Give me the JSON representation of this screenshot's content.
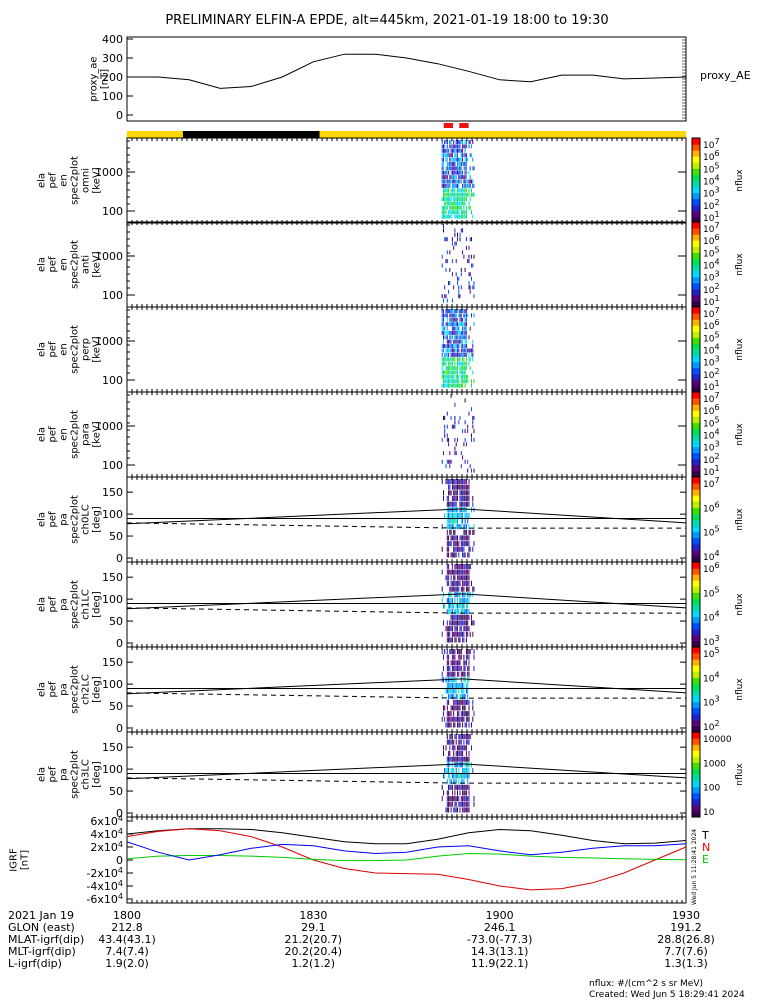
{
  "title": "PRELIMINARY ELFIN-A EPDE, alt=445km, 2021-01-19 18:00 to 19:30",
  "panels": [
    {
      "name": "ae",
      "ylab": [
        "proxy_ae",
        "[nT]"
      ],
      "yticks": [
        "400",
        "300",
        "200",
        "100",
        "0"
      ],
      "right_label": "proxy_AE"
    },
    {
      "name": "omni",
      "ylab": [
        "ela",
        "pef",
        "en",
        "spec2plot",
        "omni",
        "[keV]"
      ],
      "yticks": [
        "1000",
        "100"
      ],
      "cb_ticks": [
        "10^7",
        "10^6",
        "10^5",
        "10^4",
        "10^3",
        "10^2",
        "10^1"
      ],
      "cb_label": "nflux"
    },
    {
      "name": "anti",
      "ylab": [
        "ela",
        "pef",
        "en",
        "spec2plot",
        "anti",
        "[keV]"
      ],
      "yticks": [
        "1000",
        "100"
      ],
      "cb_ticks": [
        "10^7",
        "10^6",
        "10^5",
        "10^4",
        "10^3",
        "10^2",
        "10^1"
      ],
      "cb_label": "nflux"
    },
    {
      "name": "perp",
      "ylab": [
        "ela",
        "pef",
        "en",
        "spec2plot",
        "perp",
        "[keV]"
      ],
      "yticks": [
        "1000",
        "100"
      ],
      "cb_ticks": [
        "10^7",
        "10^6",
        "10^5",
        "10^4",
        "10^3",
        "10^2",
        "10^1"
      ],
      "cb_label": "nflux"
    },
    {
      "name": "para",
      "ylab": [
        "ela",
        "pef",
        "en",
        "spec2plot",
        "para",
        "[keV]"
      ],
      "yticks": [
        "1000",
        "100"
      ],
      "cb_ticks": [
        "10^7",
        "10^6",
        "10^5",
        "10^4",
        "10^3",
        "10^2",
        "10^1"
      ],
      "cb_label": "nflux"
    },
    {
      "name": "ch0",
      "ylab": [
        "ela",
        "pef",
        "pa",
        "spec2plot",
        "ch0LC",
        "[deg]"
      ],
      "yticks": [
        "150",
        "100",
        "50",
        "0"
      ],
      "cb_ticks": [
        "10^7",
        "10^6",
        "10^5",
        "10^4"
      ],
      "cb_label": "nflux"
    },
    {
      "name": "ch1",
      "ylab": [
        "ela",
        "pef",
        "pa",
        "spec2plot",
        "ch1LC",
        "[deg]"
      ],
      "yticks": [
        "150",
        "100",
        "50",
        "0"
      ],
      "cb_ticks": [
        "10^6",
        "10^5",
        "10^4",
        "10^3"
      ],
      "cb_label": "nflux"
    },
    {
      "name": "ch2",
      "ylab": [
        "ela",
        "pef",
        "pa",
        "spec2plot",
        "ch2LC",
        "[deg]"
      ],
      "yticks": [
        "150",
        "100",
        "50",
        "0"
      ],
      "cb_ticks": [
        "10^5",
        "10^4",
        "10^3",
        "10^2"
      ],
      "cb_label": "nflux"
    },
    {
      "name": "ch3",
      "ylab": [
        "ela",
        "pef",
        "pa",
        "spec2plot",
        "ch3LC",
        "[deg]"
      ],
      "yticks": [
        "150",
        "100",
        "50",
        "0"
      ],
      "cb_ticks": [
        "10000",
        "1000",
        "100",
        "10"
      ],
      "cb_label": "nflux"
    },
    {
      "name": "igrf",
      "ylab": [
        "IGRF",
        "[nT]"
      ],
      "yticks": [
        "6x10^4",
        "4x10^4",
        "2x10^4",
        "0",
        "-2x10^4",
        "-4x10^4",
        "-6x10^4"
      ],
      "legend": [
        "T",
        "N",
        "E"
      ],
      "legend_colors": [
        "#000000",
        "#ff0000",
        "#00ff00"
      ]
    }
  ],
  "xaxis": {
    "rows": [
      [
        "2021 Jan 19",
        "1800",
        "1830",
        "1900",
        "1930"
      ],
      [
        "GLON (east)",
        "212.8",
        "29.1",
        "246.1",
        "191.2"
      ],
      [
        "MLAT-igrf(dip)",
        "43.4(43.1)",
        "21.2(20.7)",
        "-73.0(-77.3)",
        "28.8(26.8)"
      ],
      [
        "MLT-igrf(dip)",
        "7.4(7.4)",
        "20.2(20.4)",
        "14.3(13.1)",
        "7.7(7.6)"
      ],
      [
        "L-igrf(dip)",
        "1.9(2.0)",
        "1.2(1.2)",
        "11.9(22.1)",
        "1.3(1.3)"
      ]
    ]
  },
  "footer": [
    "nflux: #/(cm^2 s sr MeV)",
    "Created: Wed Jun  5 18:29:41 2024"
  ],
  "side_stamp": "Wed Jun  5 11:28:41 2024",
  "chart_data": {
    "type": "heatmap",
    "title": "PRELIMINARY ELFIN-A EPDE, alt=445km, 2021-01-19 18:00 to 19:30",
    "x_range": [
      "18:00",
      "19:30"
    ],
    "proxy_ae": {
      "x": [
        "18:00",
        "18:05",
        "18:10",
        "18:15",
        "18:20",
        "18:25",
        "18:30",
        "18:35",
        "18:40",
        "18:45",
        "18:50",
        "18:55",
        "19:00",
        "19:05",
        "19:10",
        "19:15",
        "19:20",
        "19:25",
        "19:30"
      ],
      "values": [
        200,
        200,
        185,
        140,
        150,
        200,
        280,
        320,
        320,
        300,
        270,
        230,
        185,
        175,
        210,
        210,
        190,
        195,
        200
      ],
      "ylim": [
        0,
        400
      ]
    },
    "science_zones": {
      "red_bars": [
        [
          "18:51:00",
          "18:52:30"
        ],
        [
          "18:53:30",
          "18:55:00"
        ]
      ],
      "state_bar": {
        "yellow": [
          [
            "18:00",
            "18:09"
          ],
          [
            "18:31",
            "19:30"
          ]
        ],
        "black": [
          [
            "18:09",
            "18:31"
          ]
        ]
      }
    },
    "energy_spectrograms": {
      "yrange_keV": [
        60,
        7000
      ],
      "active_interval": [
        "18:51",
        "18:56"
      ]
    },
    "pitch_angle_spectrograms": {
      "yrange_deg": [
        0,
        180
      ],
      "active_interval": [
        "18:51",
        "18:56"
      ],
      "loss_cone_solid": [
        [
          "18:00",
          78
        ],
        [
          "18:54",
          112
        ],
        [
          "19:30",
          80
        ]
      ],
      "loss_cone_dashed": [
        [
          "18:00",
          80
        ],
        [
          "18:54",
          68
        ],
        [
          "19:30",
          68
        ]
      ]
    },
    "igrf": {
      "x": [
        "18:00",
        "18:05",
        "18:10",
        "18:15",
        "18:20",
        "18:25",
        "18:30",
        "18:35",
        "18:40",
        "18:45",
        "18:50",
        "18:55",
        "19:00",
        "19:05",
        "19:10",
        "19:15",
        "19:20",
        "19:25",
        "19:30"
      ],
      "series": [
        {
          "name": "T",
          "values": [
            40000,
            45000,
            48000,
            48000,
            47000,
            42000,
            35000,
            28000,
            25000,
            25000,
            32000,
            42000,
            47000,
            45000,
            38000,
            30000,
            25000,
            26000,
            30000
          ]
        },
        {
          "name": "N",
          "values": [
            36000,
            44000,
            48000,
            45000,
            36000,
            20000,
            0,
            -13000,
            -20000,
            -21000,
            -22000,
            -30000,
            -40000,
            -46000,
            -44000,
            -35000,
            -20000,
            0,
            20000
          ]
        },
        {
          "name": "E",
          "values": [
            2000,
            6000,
            7000,
            7000,
            6000,
            4000,
            1000,
            -1000,
            -1000,
            0,
            6000,
            10000,
            9000,
            6000,
            4000,
            3000,
            2000,
            1000,
            500
          ]
        },
        {
          "name": "",
          "values": [
            28000,
            12000,
            0,
            8000,
            18000,
            24000,
            22000,
            14000,
            10000,
            12000,
            20000,
            22000,
            14000,
            8000,
            12000,
            18000,
            22000,
            22000,
            25000
          ]
        }
      ],
      "ylim": [
        -60000,
        60000
      ]
    }
  }
}
